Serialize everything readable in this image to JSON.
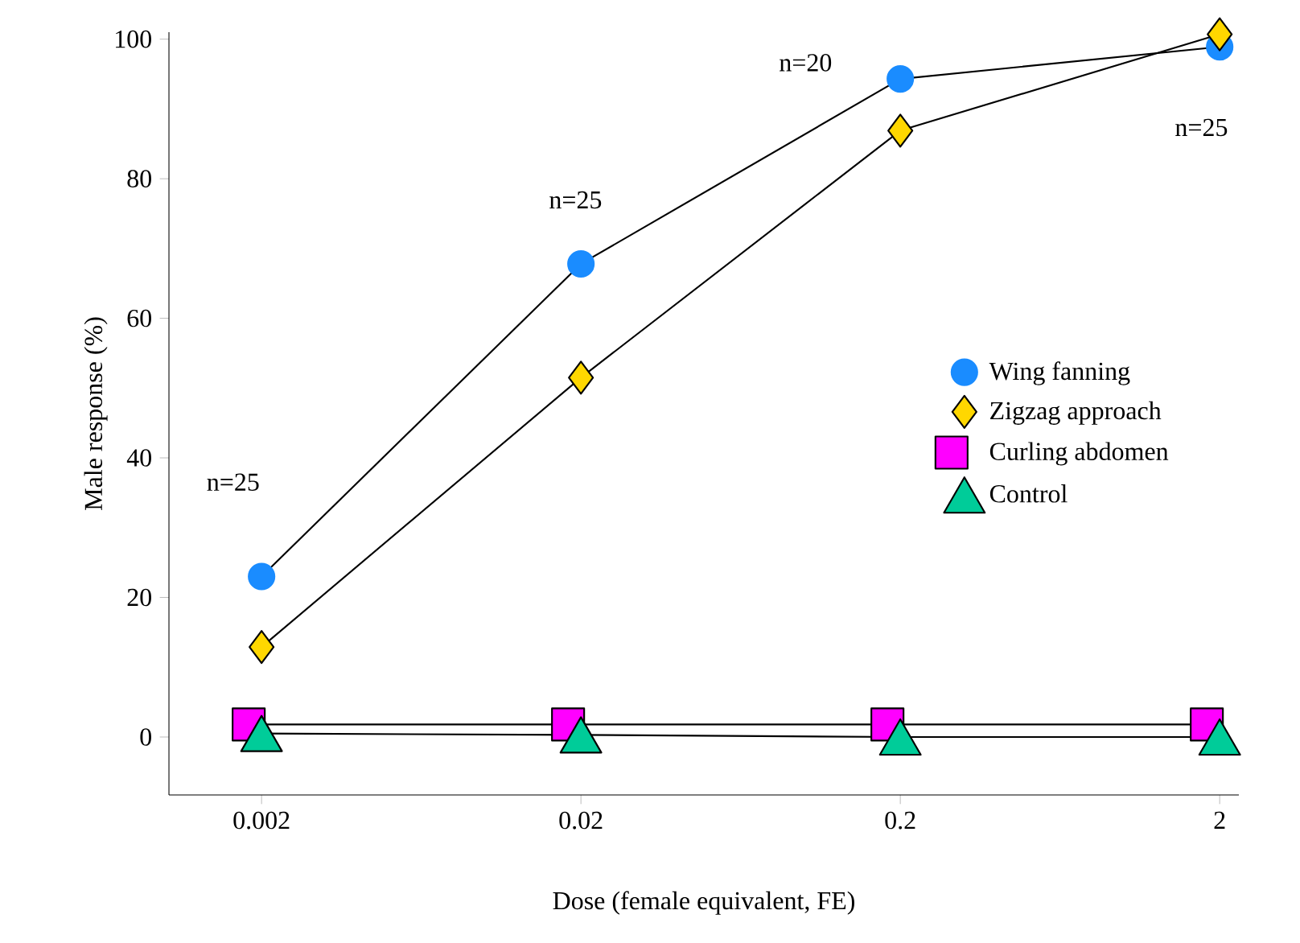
{
  "chart_data": {
    "type": "line",
    "xlabel": "Dose (female equivalent, FE)",
    "ylabel": "Male response (%)",
    "categories": [
      "0.002",
      "0.02",
      "0.2",
      "2"
    ],
    "series": [
      {
        "name": "Wing fanning",
        "color": "#1a8cff",
        "marker": "circle",
        "values": [
          23.0,
          67.8,
          94.3,
          98.9
        ]
      },
      {
        "name": "Zigzag approach",
        "color": "#ffd700",
        "marker": "diamond",
        "values": [
          12.9,
          51.5,
          86.9,
          100.7
        ]
      },
      {
        "name": "Curling abdomen",
        "color": "#ff00ff",
        "marker": "square",
        "values": [
          1.8,
          1.8,
          1.8,
          1.8
        ]
      },
      {
        "name": "Control",
        "color": "#00cc99",
        "marker": "triangle",
        "values": [
          0.5,
          0.3,
          0,
          0
        ]
      }
    ],
    "ylim": [
      -8.3,
      101
    ],
    "yticks": [
      0,
      20,
      40,
      60,
      80,
      100
    ],
    "legend": "right",
    "annotations": [
      "n=25",
      "n=25",
      "n=20",
      "n=25"
    ]
  }
}
